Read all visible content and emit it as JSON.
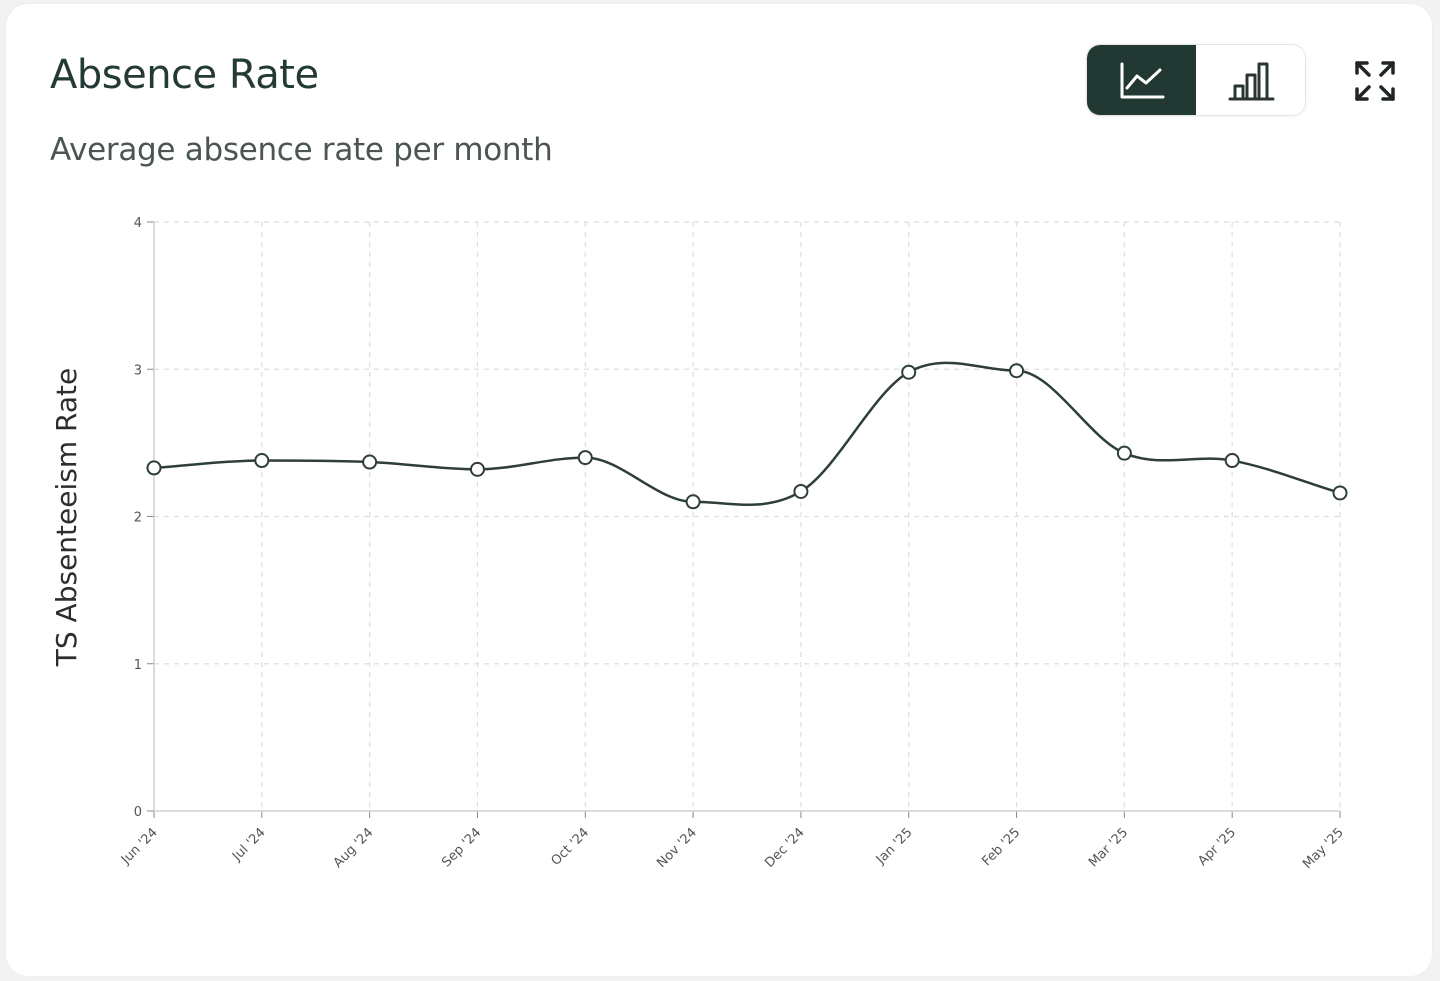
{
  "card": {
    "title": "Absence Rate",
    "subtitle": "Average absence rate per month"
  },
  "toolbar": {
    "line_view_icon": "line-chart-icon",
    "bar_view_icon": "bar-chart-icon",
    "expand_icon": "expand-icon",
    "active_view": "line"
  },
  "colors": {
    "accent": "#213833",
    "line": "#2d3e3b",
    "grid": "#dedede"
  },
  "chart_data": {
    "type": "line",
    "categories": [
      "Jun '24",
      "Jul '24",
      "Aug '24",
      "Sep '24",
      "Oct '24",
      "Nov '24",
      "Dec '24",
      "Jan '25",
      "Feb '25",
      "Mar '25",
      "Apr '25",
      "May '25"
    ],
    "series": [
      {
        "values": [
          2.33,
          2.38,
          2.37,
          2.32,
          2.4,
          2.1,
          2.17,
          2.98,
          2.99,
          2.43,
          2.38,
          2.16
        ]
      }
    ],
    "title": "",
    "xlabel": "",
    "ylabel": "TS Absenteeism Rate",
    "ylim": [
      0,
      4
    ],
    "yticks": [
      "0",
      "1",
      "2",
      "3",
      "4"
    ],
    "grid": true,
    "grid_style": "dashed",
    "smooth": true,
    "markers": "hollow-circle"
  }
}
